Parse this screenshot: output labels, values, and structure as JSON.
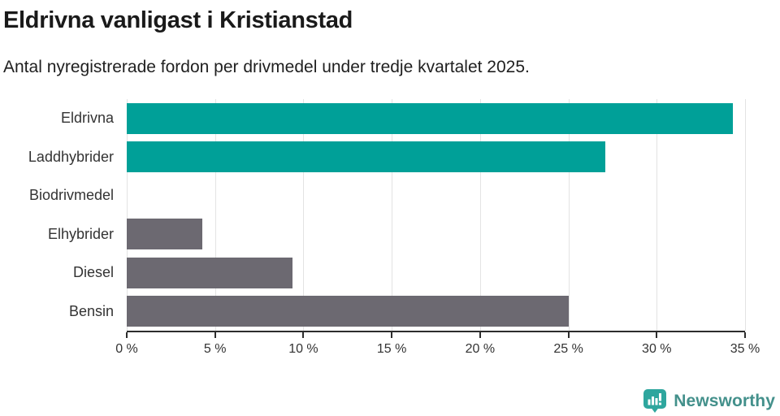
{
  "header": {
    "title": "Eldrivna vanligast i Kristianstad",
    "subtitle": "Antal nyregistrerade fordon per drivmedel under tredje kvartalet 2025."
  },
  "chart_data": {
    "type": "bar",
    "orientation": "horizontal",
    "title": "Eldrivna vanligast i Kristianstad",
    "subtitle": "Antal nyregistrerade fordon per drivmedel under tredje kvartalet 2025.",
    "categories": [
      "Eldrivna",
      "Laddhybrider",
      "Biodrivmedel",
      "Elhybrider",
      "Diesel",
      "Bensin"
    ],
    "values": [
      34.3,
      27.1,
      0,
      4.3,
      9.4,
      25.0
    ],
    "unit": "%",
    "xlim": [
      0,
      35
    ],
    "xticks": [
      0,
      5,
      10,
      15,
      20,
      25,
      30,
      35
    ],
    "xtick_labels": [
      "0 %",
      "5 %",
      "10 %",
      "15 %",
      "20 %",
      "25 %",
      "30 %",
      "35 %"
    ],
    "bar_colors": [
      "#00a098",
      "#00a098",
      "#6c6971",
      "#6c6971",
      "#6c6971",
      "#6c6971"
    ],
    "highlight_color": "#00a098",
    "default_color": "#6c6971",
    "grid": true,
    "legend": "none"
  },
  "footer": {
    "brand": "Newsworthy",
    "brand_color": "#43908b",
    "icon": "newsworthy-speech-bubble-barchart-icon",
    "icon_color": "#2ea69e"
  }
}
